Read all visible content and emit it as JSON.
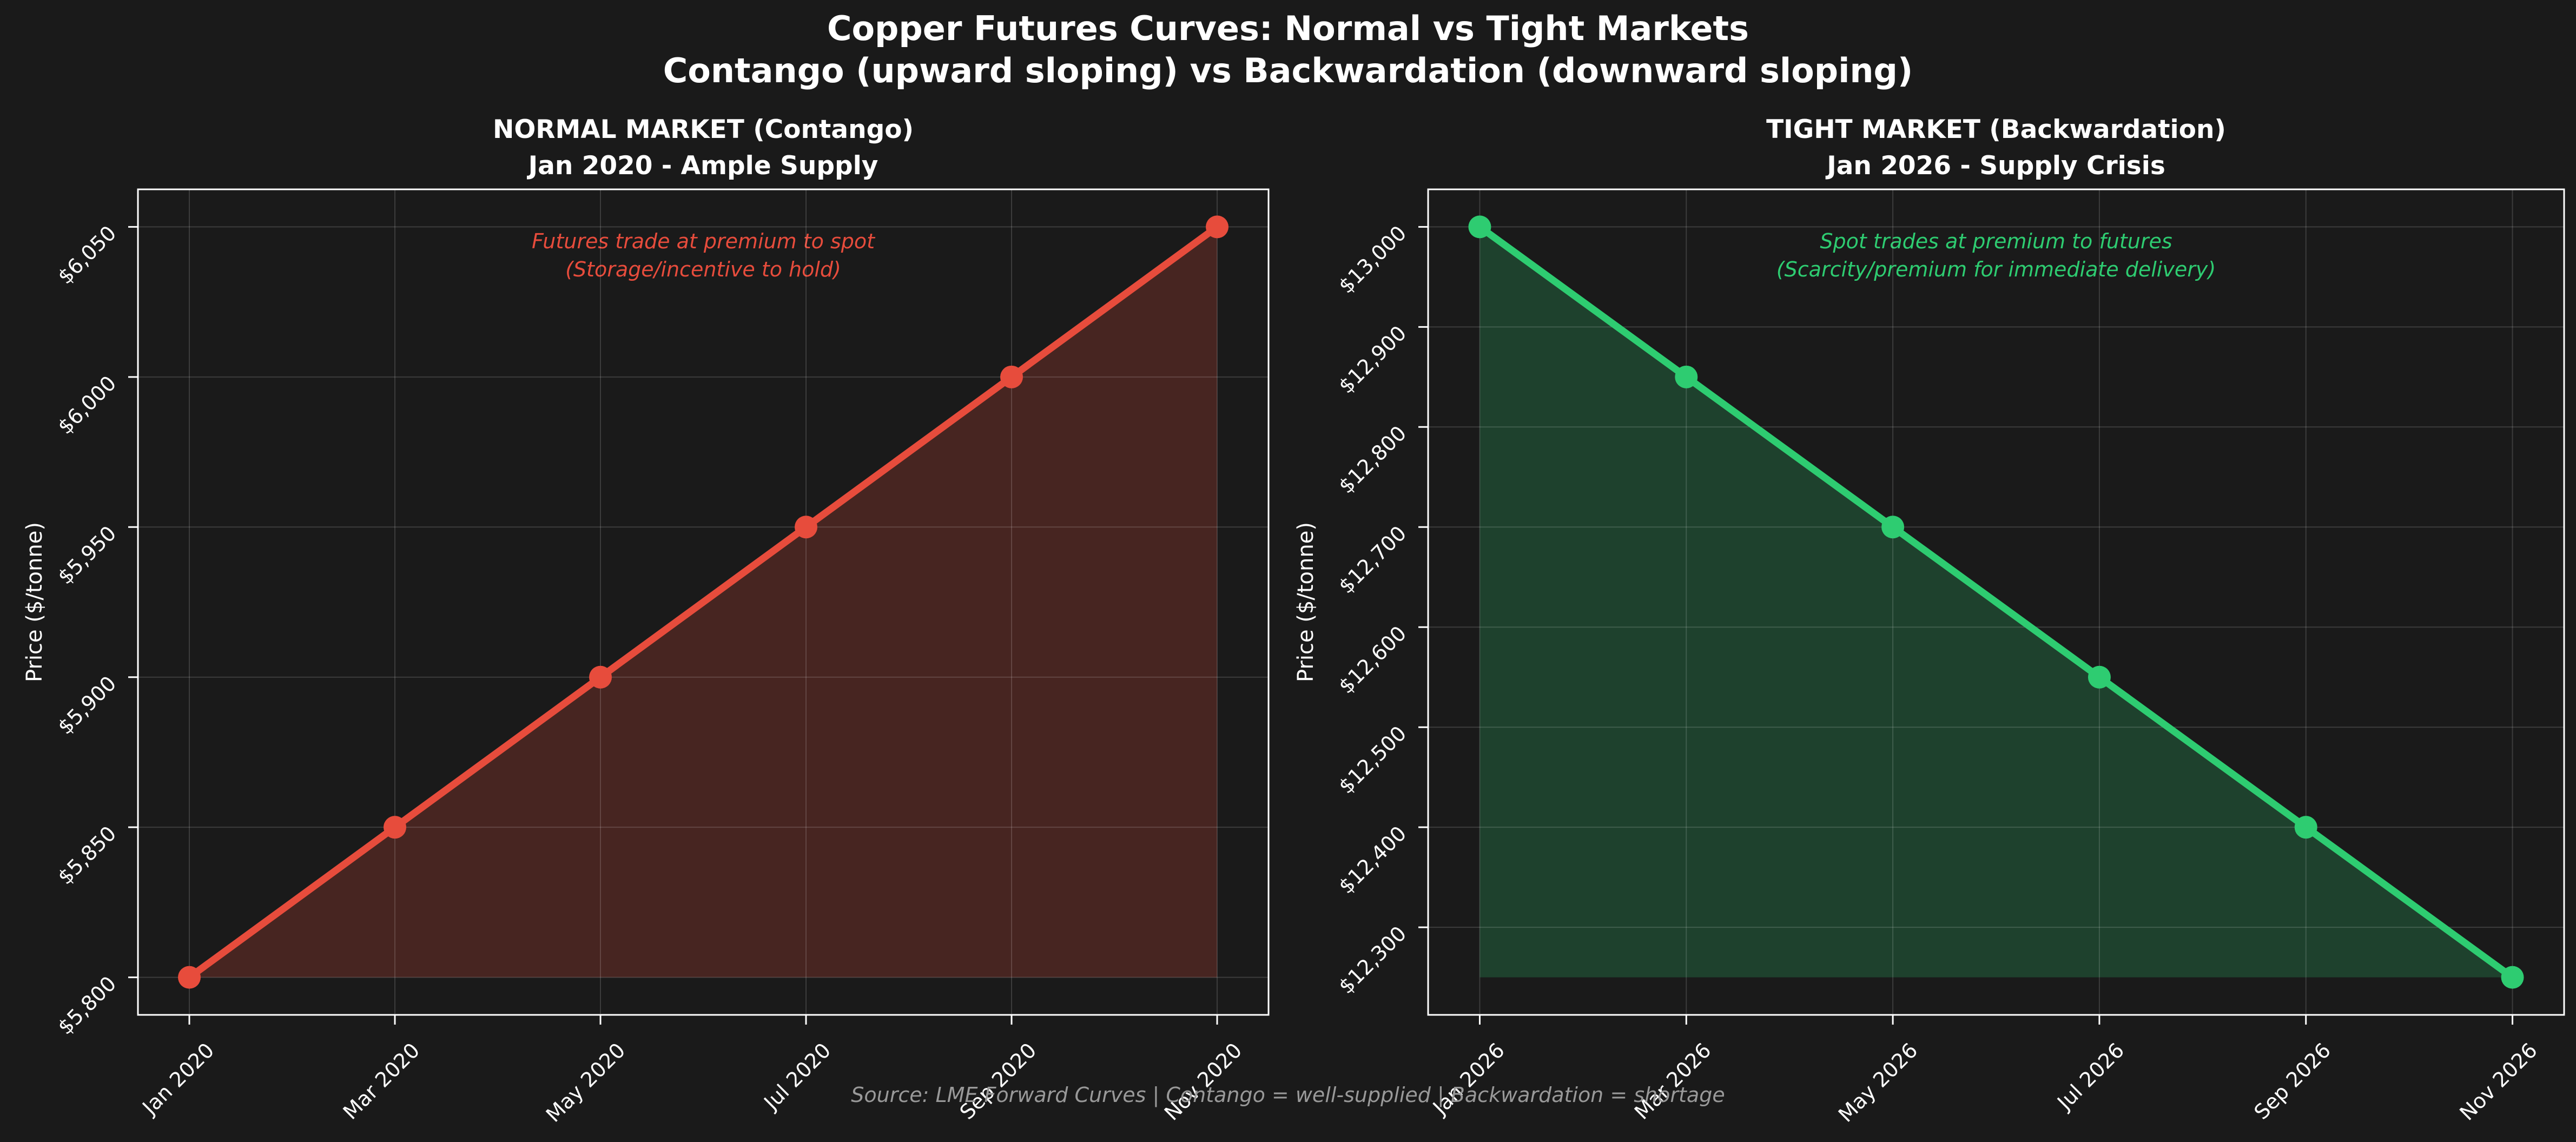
{
  "figure": {
    "title_line1": "Copper Futures Curves: Normal vs Tight Markets",
    "title_line2": "Contango (upward sloping) vs Backwardation (downward sloping)",
    "footer": "Source: LME Forward Curves | Contango = well-supplied | Backwardation = shortage",
    "background_color": "#1a1a1a",
    "text_color": "#ffffff",
    "footer_color": "#999999",
    "grid_color": "rgba(255,255,255,0.15)",
    "spine_color": "#ffffff"
  },
  "chart_data": [
    {
      "type": "area",
      "title_line1": "NORMAL MARKET (Contango)",
      "title_line2": "Jan 2020 - Ample Supply",
      "ylabel": "Price ($/tonne)",
      "categories": [
        "Jan 2020",
        "Mar 2020",
        "May 2020",
        "Jul 2020",
        "Sep 2020",
        "Nov 2020"
      ],
      "values": [
        5800,
        5850,
        5900,
        5950,
        6000,
        6050
      ],
      "ytick_values": [
        5800,
        5850,
        5900,
        5950,
        6000,
        6050
      ],
      "ytick_labels": [
        "$5,800",
        "$5,850",
        "$5,900",
        "$5,950",
        "$6,000",
        "$6,050"
      ],
      "ylim": [
        5787.5,
        6062.5
      ],
      "annotation_line1": "Futures trade at premium to spot",
      "annotation_line2": "(Storage/incentive to hold)",
      "line_color": "#e74c3c",
      "fill_color": "rgba(231,76,60,0.22)",
      "grid": true,
      "legend": "none"
    },
    {
      "type": "area",
      "title_line1": "TIGHT MARKET (Backwardation)",
      "title_line2": "Jan 2026 - Supply Crisis",
      "ylabel": "Price ($/tonne)",
      "categories": [
        "Jan 2026",
        "Mar 2026",
        "May 2026",
        "Jul 2026",
        "Sep 2026",
        "Nov 2026"
      ],
      "values": [
        13000,
        12850,
        12700,
        12550,
        12400,
        12250
      ],
      "ytick_values": [
        12300,
        12400,
        12500,
        12600,
        12700,
        12800,
        12900,
        13000
      ],
      "ytick_labels": [
        "$12,300",
        "$12,400",
        "$12,500",
        "$12,600",
        "$12,700",
        "$12,800",
        "$12,900",
        "$13,000"
      ],
      "ylim": [
        12212.5,
        13037.5
      ],
      "annotation_line1": "Spot trades at premium to futures",
      "annotation_line2": "(Scarcity/premium for immediate delivery)",
      "line_color": "#2ecc71",
      "fill_color": "rgba(46,204,113,0.22)",
      "grid": true,
      "legend": "none"
    }
  ]
}
